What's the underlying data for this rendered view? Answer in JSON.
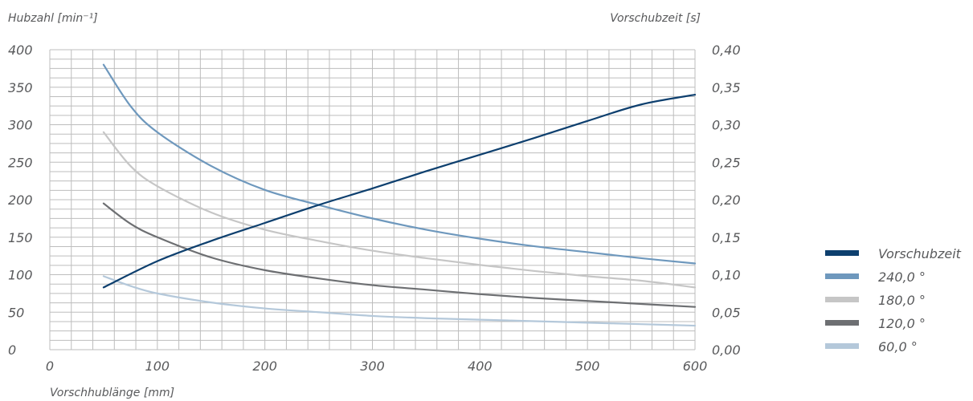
{
  "chart_data": {
    "type": "line",
    "left_axis_label": "Hubzahl [min⁻¹]",
    "right_axis_label": "Vorschubzeit [s]",
    "xlabel": "Vorschhublänge [mm]",
    "xlim": [
      0,
      600
    ],
    "ylim_left": [
      0,
      400
    ],
    "ylim_right": [
      0,
      0.4
    ],
    "x_ticks": [
      "0",
      "100",
      "200",
      "300",
      "400",
      "500",
      "600"
    ],
    "x_tick_values": [
      0,
      100,
      200,
      300,
      400,
      500,
      600
    ],
    "y_left_ticks": [
      "0",
      "50",
      "100",
      "150",
      "200",
      "250",
      "300",
      "350",
      "400"
    ],
    "y_left_tick_values": [
      0,
      50,
      100,
      150,
      200,
      250,
      300,
      350,
      400
    ],
    "y_right_ticks": [
      "0,00",
      "0,05",
      "0,10",
      "0,15",
      "0,20",
      "0,25",
      "0,30",
      "0,35",
      "0,40"
    ],
    "y_right_tick_values": [
      0,
      0.05,
      0.1,
      0.15,
      0.2,
      0.25,
      0.3,
      0.35,
      0.4
    ],
    "grid": true,
    "legend_position": "right",
    "series": [
      {
        "name": "Vorschubzeit",
        "axis": "right",
        "color": "#0d3f6e",
        "x": [
          50,
          100,
          150,
          200,
          250,
          300,
          350,
          400,
          450,
          500,
          550,
          600
        ],
        "y": [
          0.083,
          0.118,
          0.145,
          0.169,
          0.193,
          0.215,
          0.238,
          0.26,
          0.282,
          0.305,
          0.327,
          0.34
        ]
      },
      {
        "name": "240,0 °",
        "axis": "left",
        "color": "#6e98bd",
        "x": [
          50,
          75,
          100,
          150,
          200,
          250,
          300,
          350,
          400,
          450,
          500,
          550,
          600
        ],
        "y": [
          380,
          325,
          290,
          245,
          213,
          193,
          175,
          160,
          148,
          138,
          130,
          122,
          115
        ]
      },
      {
        "name": "180,0 °",
        "axis": "left",
        "color": "#c6c6c6",
        "x": [
          50,
          75,
          100,
          150,
          200,
          250,
          300,
          350,
          400,
          450,
          500,
          550,
          600
        ],
        "y": [
          290,
          245,
          218,
          183,
          160,
          145,
          132,
          122,
          113,
          105,
          98,
          92,
          83
        ]
      },
      {
        "name": "120,0 °",
        "axis": "left",
        "color": "#6d6f72",
        "x": [
          50,
          75,
          100,
          150,
          200,
          250,
          300,
          350,
          400,
          450,
          500,
          550,
          600
        ],
        "y": [
          195,
          168,
          150,
          123,
          106,
          95,
          86,
          80,
          74,
          69,
          65,
          61,
          57
        ]
      },
      {
        "name": "60,0 °",
        "axis": "left",
        "color": "#b4c8da",
        "x": [
          50,
          75,
          100,
          150,
          200,
          250,
          300,
          350,
          400,
          450,
          500,
          550,
          600
        ],
        "y": [
          98,
          85,
          75,
          63,
          55,
          50,
          45,
          42,
          40,
          38,
          36,
          34,
          32
        ]
      }
    ]
  }
}
